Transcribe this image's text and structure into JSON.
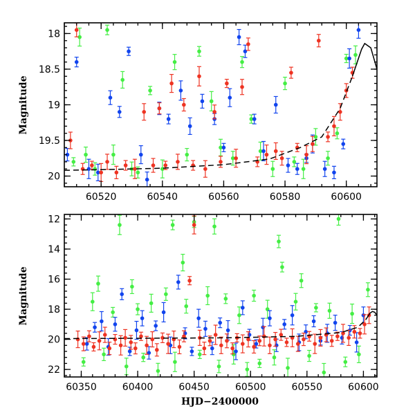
{
  "colors": {
    "green": "#44ee44",
    "blue": "#1144ee",
    "red": "#ee3322",
    "model": "#000000"
  },
  "chart_data": [
    {
      "type": "scatter",
      "title": "",
      "xlabel": "",
      "ylabel": "Magnitude",
      "xlim": [
        60508,
        60610
      ],
      "ylim": [
        20.15,
        17.85
      ],
      "y_inverted": true,
      "xticks": [
        "60520",
        "60540",
        "60560",
        "60580",
        "60600"
      ],
      "xtick_values": [
        60520,
        60540,
        60560,
        60580,
        60600
      ],
      "yticks": [
        "18",
        "18.5",
        "19",
        "19.5",
        "20"
      ],
      "ytick_values": [
        18,
        18.5,
        19,
        19.5,
        20
      ],
      "model_curve": {
        "x": [
          60508,
          60520,
          60540,
          60560,
          60575,
          60585,
          60592,
          60598,
          60602,
          60605,
          60606,
          60608,
          60610
        ],
        "y": [
          19.92,
          19.91,
          19.89,
          19.84,
          19.76,
          19.6,
          19.45,
          19.05,
          18.6,
          18.22,
          18.14,
          18.2,
          18.5
        ]
      },
      "series": [
        {
          "color": "green",
          "x": [
            60511,
            60513,
            60515,
            60518,
            60522,
            60524,
            60527,
            60530,
            60532,
            60536,
            60540,
            60544,
            60548,
            60552,
            60556,
            60559,
            60563,
            60566,
            60569,
            60572,
            60576,
            60580,
            60583,
            60586,
            60590,
            60594,
            60597,
            60600,
            60603
          ],
          "y": [
            19.8,
            18.05,
            19.7,
            19.9,
            17.95,
            19.7,
            18.65,
            19.9,
            19.95,
            18.8,
            19.9,
            18.4,
            19.7,
            18.25,
            18.95,
            19.6,
            19.75,
            18.4,
            19.2,
            19.65,
            19.9,
            18.7,
            19.8,
            19.9,
            19.45,
            19.75,
            19.4,
            18.35,
            18.3
          ]
        },
        {
          "color": "blue",
          "x": [
            60509,
            60512,
            60516,
            60519,
            60523,
            60526,
            60529,
            60533,
            60535,
            60539,
            60542,
            60546,
            60549,
            60553,
            60557,
            60560,
            60562,
            60565,
            60567,
            60570,
            60573,
            60577,
            60581,
            60584,
            60587,
            60589,
            60593,
            60596,
            60599,
            60601,
            60604
          ],
          "y": [
            19.7,
            18.4,
            19.9,
            19.95,
            18.9,
            19.1,
            18.25,
            19.7,
            20.05,
            19.05,
            19.2,
            18.8,
            19.3,
            18.95,
            19.2,
            19.6,
            18.9,
            18.05,
            18.25,
            19.2,
            19.65,
            19.0,
            19.85,
            19.9,
            19.75,
            19.55,
            19.9,
            19.95,
            19.55,
            18.35,
            17.95
          ]
        },
        {
          "color": "red",
          "x": [
            60510,
            60512,
            60514,
            60517,
            60520,
            60522,
            60525,
            60528,
            60531,
            60534,
            60537,
            60539,
            60541,
            60543,
            60545,
            60547,
            60550,
            60552,
            60554,
            60557,
            60559,
            60561,
            60564,
            60566,
            60568,
            60571,
            60574,
            60577,
            60579,
            60582,
            60584,
            60587,
            60589,
            60591,
            60594,
            60596,
            60598,
            60600,
            60602
          ],
          "y": [
            19.5,
            17.95,
            19.9,
            19.85,
            19.95,
            19.8,
            19.95,
            19.85,
            19.9,
            19.1,
            19.85,
            19.05,
            19.85,
            18.7,
            19.8,
            19.0,
            19.85,
            18.6,
            19.9,
            19.1,
            19.8,
            18.7,
            19.75,
            18.75,
            18.15,
            19.8,
            19.7,
            19.65,
            19.75,
            18.55,
            19.6,
            19.7,
            19.55,
            18.1,
            19.45,
            19.3,
            19.1,
            18.8,
            18.55
          ]
        }
      ]
    },
    {
      "type": "scatter",
      "title": "",
      "xlabel": "HJD−2400000",
      "ylabel": "Magnitude",
      "xlim": [
        60335,
        60612
      ],
      "ylim": [
        22.5,
        11.7
      ],
      "y_inverted": true,
      "xticks": [
        "60350",
        "60400",
        "60450",
        "60500",
        "60550",
        "60600"
      ],
      "xtick_values": [
        60350,
        60400,
        60450,
        60500,
        60550,
        60600
      ],
      "yticks": [
        "12",
        "14",
        "16",
        "18",
        "20",
        "22"
      ],
      "ytick_values": [
        12,
        14,
        16,
        18,
        20,
        22
      ],
      "model_curve": {
        "x": [
          60335,
          60400,
          60480,
          60540,
          60580,
          60595,
          60602,
          60606,
          60608,
          60610,
          60612
        ],
        "y": [
          19.95,
          19.93,
          19.9,
          19.8,
          19.55,
          19.2,
          18.7,
          18.25,
          18.15,
          18.2,
          18.4
        ]
      },
      "series": [
        {
          "color": "green",
          "x": [
            60352,
            60360,
            60365,
            60370,
            60378,
            60384,
            60390,
            60395,
            60400,
            60405,
            60412,
            60418,
            60425,
            60431,
            60433,
            60440,
            60443,
            60450,
            60455,
            60462,
            60468,
            60472,
            60478,
            60485,
            60490,
            60497,
            60503,
            60508,
            60515,
            60521,
            60525,
            60528,
            60533,
            60540,
            60545,
            60552,
            60558,
            60565,
            60570,
            60578,
            60584,
            60590,
            60596,
            60604
          ],
          "y": [
            21.5,
            17.5,
            16.3,
            21.0,
            18.2,
            12.4,
            21.8,
            16.5,
            18.0,
            21.2,
            17.6,
            22.1,
            17.0,
            12.4,
            21.5,
            14.9,
            17.8,
            12.2,
            21.0,
            17.1,
            12.5,
            21.8,
            17.3,
            21.0,
            18.4,
            22.0,
            17.1,
            21.6,
            18.0,
            21.2,
            13.5,
            15.2,
            21.9,
            17.5,
            16.1,
            21.1,
            17.9,
            22.2,
            18.1,
            12.0,
            21.5,
            18.3,
            21.0,
            16.7
          ]
        },
        {
          "color": "blue",
          "x": [
            60355,
            60362,
            60368,
            60374,
            60380,
            60386,
            60393,
            60399,
            60404,
            60410,
            60416,
            60423,
            60429,
            60436,
            60442,
            60448,
            60454,
            60460,
            60466,
            60473,
            60480,
            60487,
            60493,
            60499,
            60505,
            60511,
            60517,
            60523,
            60530,
            60537,
            60543,
            60549,
            60556,
            60562,
            60568,
            60575,
            60581,
            60588,
            60594,
            60600
          ],
          "y": [
            20.3,
            19.2,
            18.8,
            20.5,
            19.0,
            17.0,
            20.8,
            19.4,
            18.6,
            20.9,
            19.1,
            18.2,
            20.4,
            16.2,
            19.6,
            20.8,
            18.6,
            19.3,
            20.6,
            18.9,
            19.4,
            20.8,
            17.9,
            19.7,
            20.3,
            19.2,
            18.6,
            20.4,
            19.0,
            18.4,
            20.2,
            19.5,
            18.8,
            20.1,
            19.6,
            18.9,
            19.9,
            19.4,
            20.2,
            18.4
          ]
        },
        {
          "color": "red",
          "x": [
            60347,
            60352,
            60357,
            60361,
            60366,
            60371,
            60375,
            60380,
            60385,
            60389,
            60394,
            60398,
            60403,
            60408,
            60413,
            60417,
            60422,
            60427,
            60432,
            60437,
            60441,
            60446,
            60450,
            60455,
            60459,
            60464,
            60469,
            60474,
            60479,
            60484,
            60488,
            60493,
            60498,
            60503,
            60508,
            60512,
            60517,
            60522,
            60527,
            60532,
            60537,
            60542,
            60547,
            60552,
            60557,
            60562,
            60567,
            60572,
            60577,
            60582,
            60587,
            60592,
            60597,
            60601,
            60605
          ],
          "y": [
            20.0,
            20.3,
            19.8,
            20.5,
            20.1,
            19.7,
            20.6,
            20.0,
            20.4,
            19.9,
            20.2,
            20.6,
            19.8,
            20.4,
            20.0,
            20.7,
            19.9,
            20.3,
            20.0,
            20.5,
            19.8,
            16.1,
            12.4,
            19.9,
            20.6,
            20.1,
            19.7,
            20.4,
            20.1,
            20.6,
            19.9,
            20.3,
            20.0,
            20.5,
            20.1,
            19.8,
            20.4,
            20.0,
            19.7,
            20.2,
            19.9,
            20.3,
            20.0,
            19.8,
            20.3,
            19.9,
            19.7,
            20.1,
            19.8,
            19.6,
            19.9,
            19.5,
            19.6,
            19.0,
            18.4
          ]
        }
      ]
    }
  ]
}
